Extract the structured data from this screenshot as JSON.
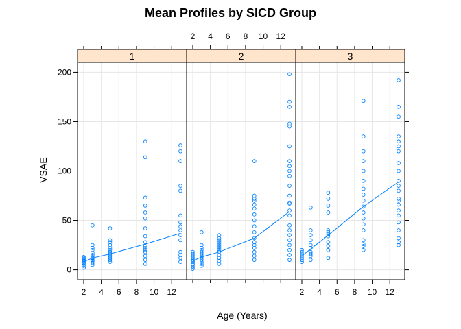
{
  "chart_data": {
    "type": "scatter",
    "title": "Mean Profiles by SICD Group",
    "xlabel": "Age (Years)",
    "ylabel": "VSAE",
    "xlim": [
      1.3,
      13.7
    ],
    "ylim": [
      -10,
      210
    ],
    "x_ticks": [
      2,
      4,
      6,
      8,
      10,
      12
    ],
    "y_ticks": [
      0,
      50,
      100,
      150,
      200
    ],
    "grid": true,
    "point_color": "#0080ff",
    "line_color": "#0080ff",
    "strip_color": "#ffe5cc",
    "panels": [
      {
        "label": "1",
        "points": [
          {
            "x": 2,
            "y": [
              2,
              4,
              6,
              7,
              8,
              9,
              10,
              11,
              12,
              13
            ]
          },
          {
            "x": 3,
            "y": [
              5,
              7,
              9,
              10,
              11,
              12,
              13,
              15,
              17,
              20,
              22,
              25,
              45
            ]
          },
          {
            "x": 5,
            "y": [
              8,
              10,
              12,
              14,
              16,
              18,
              20,
              22,
              25,
              28,
              30,
              42
            ]
          },
          {
            "x": 9,
            "y": [
              6,
              10,
              14,
              18,
              20,
              22,
              24,
              28,
              34,
              42,
              52,
              58,
              65,
              73,
              114,
              130
            ]
          },
          {
            "x": 13,
            "y": [
              8,
              12,
              15,
              18,
              30,
              35,
              40,
              44,
              48,
              55,
              80,
              85,
              110,
              120,
              126
            ]
          }
        ],
        "mean_line": {
          "x": [
            2,
            3,
            5,
            9,
            13
          ],
          "y": [
            8.0,
            12.0,
            16.0,
            26.0,
            37.0
          ]
        }
      },
      {
        "label": "2",
        "points": [
          {
            "x": 2,
            "y": [
              1,
              3,
              5,
              6,
              8,
              9,
              10,
              12,
              14,
              16,
              18
            ]
          },
          {
            "x": 3,
            "y": [
              4,
              6,
              8,
              10,
              12,
              14,
              16,
              18,
              20,
              22,
              25,
              38
            ]
          },
          {
            "x": 5,
            "y": [
              6,
              9,
              12,
              15,
              18,
              20,
              22,
              24,
              26,
              28,
              30,
              32,
              35
            ]
          },
          {
            "x": 9,
            "y": [
              10,
              14,
              18,
              22,
              25,
              28,
              32,
              38,
              44,
              50,
              56,
              62,
              66,
              70,
              72,
              75,
              110
            ]
          },
          {
            "x": 13,
            "y": [
              10,
              15,
              20,
              25,
              30,
              35,
              40,
              45,
              55,
              60,
              67,
              68,
              75,
              85,
              95,
              100,
              105,
              110,
              125,
              145,
              148,
              165,
              170,
              198
            ]
          }
        ],
        "mean_line": {
          "x": [
            2,
            3,
            5,
            9,
            13
          ],
          "y": [
            9.0,
            13.0,
            18.0,
            32.0,
            59.0
          ]
        }
      },
      {
        "label": "3",
        "points": [
          {
            "x": 2,
            "y": [
              8,
              10,
              12,
              14,
              16,
              18,
              20
            ]
          },
          {
            "x": 3,
            "y": [
              10,
              14,
              16,
              18,
              22,
              25,
              30,
              35,
              40,
              63
            ]
          },
          {
            "x": 5,
            "y": [
              12,
              20,
              24,
              28,
              34,
              36,
              38,
              40,
              58,
              65,
              72,
              78
            ]
          },
          {
            "x": 9,
            "y": [
              20,
              24,
              26,
              30,
              40,
              46,
              52,
              58,
              64,
              70,
              76,
              82,
              90,
              100,
              110,
              120,
              135,
              171
            ]
          },
          {
            "x": 13,
            "y": [
              25,
              28,
              32,
              40,
              48,
              55,
              60,
              66,
              70,
              72,
              80,
              85,
              90,
              100,
              108,
              120,
              125,
              130,
              135,
              155,
              165,
              192
            ]
          }
        ],
        "mean_line": {
          "x": [
            2,
            3,
            5,
            9,
            13
          ],
          "y": [
            14.0,
            21.0,
            35.0,
            64.0,
            89.0
          ]
        }
      }
    ]
  }
}
